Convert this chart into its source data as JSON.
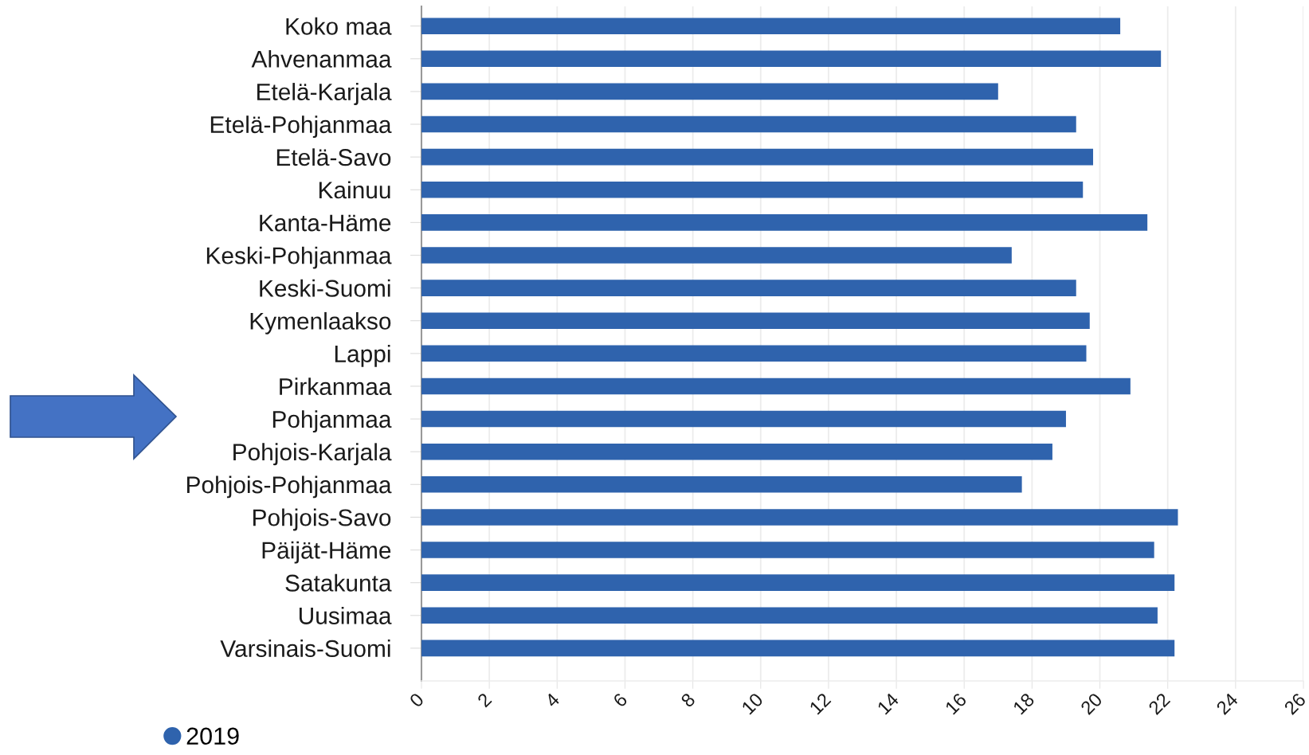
{
  "chart_data": {
    "type": "bar",
    "orientation": "horizontal",
    "categories": [
      "Koko maa",
      "Ahvenanmaa",
      "Etelä-Karjala",
      "Etelä-Pohjanmaa",
      "Etelä-Savo",
      "Kainuu",
      "Kanta-Häme",
      "Keski-Pohjanmaa",
      "Keski-Suomi",
      "Kymenlaakso",
      "Lappi",
      "Pirkanmaa",
      "Pohjanmaa",
      "Pohjois-Karjala",
      "Pohjois-Pohjanmaa",
      "Pohjois-Savo",
      "Päijät-Häme",
      "Satakunta",
      "Uusimaa",
      "Varsinais-Suomi"
    ],
    "series": [
      {
        "name": "2019",
        "color": "#2f63ad",
        "values": [
          20.6,
          21.8,
          17.0,
          19.3,
          19.8,
          19.5,
          21.4,
          17.4,
          19.3,
          19.7,
          19.6,
          20.9,
          19.0,
          18.6,
          17.7,
          22.3,
          21.6,
          22.2,
          21.7,
          22.2
        ]
      }
    ],
    "xlim": [
      0,
      26
    ],
    "xticks": [
      0,
      2,
      4,
      6,
      8,
      10,
      12,
      14,
      16,
      18,
      20,
      22,
      24,
      26
    ],
    "grid": "x",
    "legend": "bottom left"
  }
}
